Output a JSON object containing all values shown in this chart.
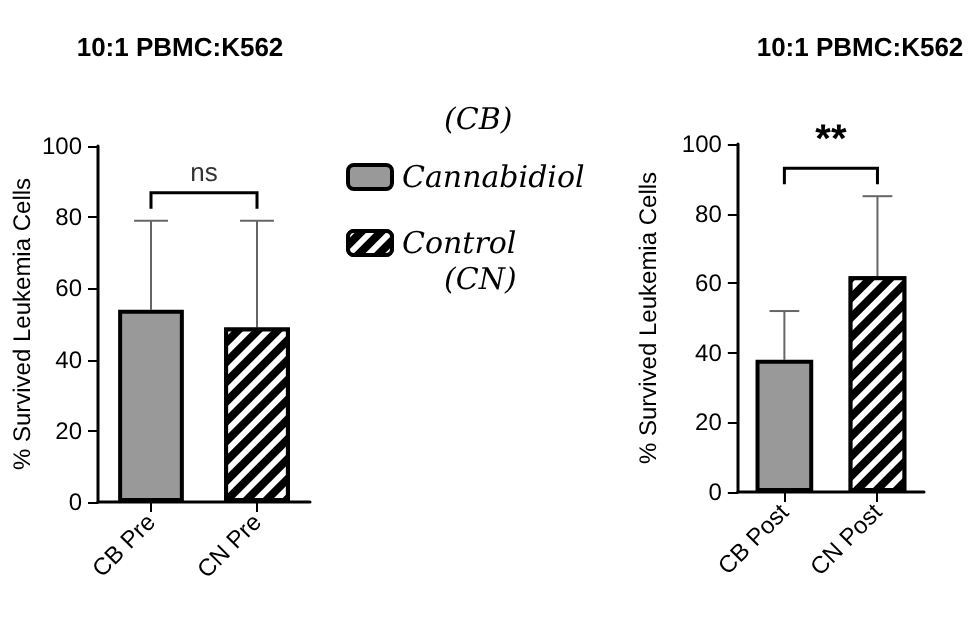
{
  "chart_data": [
    {
      "type": "bar",
      "title": "10:1 PBMC:K562",
      "ylabel": "% Survived Leukemia Cells",
      "categories": [
        "CB Pre",
        "CN Pre"
      ],
      "stacked": true,
      "ylim": [
        0,
        100
      ],
      "yticks": [
        0,
        20,
        40,
        60,
        80,
        100
      ],
      "grid": false,
      "legend": "right",
      "annotations": [
        "ns",
        "(CB)",
        "(CN)"
      ],
      "series": [
        {
          "name": "Cannabidiol",
          "color": "#999999",
          "values": [
            54,
            null
          ],
          "errors": [
            [
              54,
              79
            ],
            null
          ]
        },
        {
          "name": "Control",
          "color": "#000000",
          "values": [
            null,
            49
          ],
          "errors": [
            null,
            [
              49,
              79
            ]
          ]
        }
      ]
    },
    {
      "type": "bar",
      "title": "10:1 PBMC:K562",
      "ylabel": "% Survived Leukemia Cells",
      "categories": [
        "CB Post",
        "CN Post"
      ],
      "stacked": true,
      "ylim": [
        0,
        100
      ],
      "yticks": [
        0,
        20,
        40,
        60,
        80,
        100
      ],
      "grid": false,
      "legend": false,
      "annotations": [
        "**"
      ],
      "series": [
        {
          "color": "#999999",
          "values": [
            38,
            null
          ],
          "errors": [
            [
              38,
              52
            ],
            null
          ]
        },
        {
          "color": "#000000",
          "values": [
            null,
            62
          ],
          "errors": [
            null,
            [
              62,
              85
            ]
          ]
        }
      ]
    }
  ]
}
